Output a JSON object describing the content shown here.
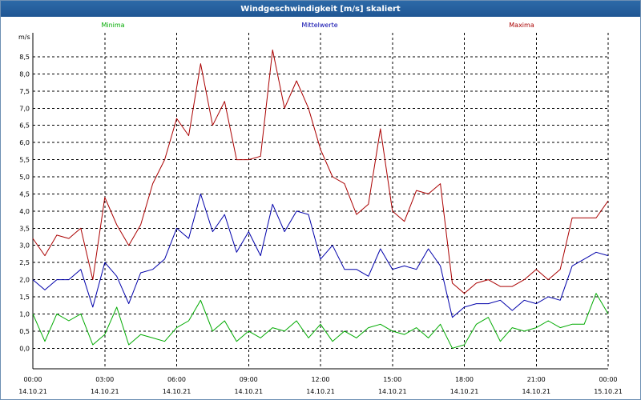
{
  "window": {
    "title": "Windgeschwindigkeit [m/s] skaliert"
  },
  "legend": [
    {
      "label": "Minima",
      "color": "#00aa00"
    },
    {
      "label": "Mittelwerte",
      "color": "#0000aa"
    },
    {
      "label": "Maxima",
      "color": "#aa0000"
    }
  ],
  "chart_data": {
    "type": "line",
    "title": "Windgeschwindigkeit [m/s] skaliert",
    "ylabel": "m/s",
    "xlabel": "",
    "ylim": [
      -0.6,
      9.2
    ],
    "xlim": [
      0,
      24
    ],
    "grid": true,
    "legend_position": "top",
    "yticks": [
      "0,0",
      "0,5",
      "1,0",
      "1,5",
      "2,0",
      "2,5",
      "3,0",
      "3,5",
      "4,0",
      "4,5",
      "5,0",
      "5,5",
      "6,0",
      "6,5",
      "7,0",
      "7,5",
      "8,0",
      "8,5"
    ],
    "xticks": [
      {
        "time": "00:00",
        "date": "14.10.21"
      },
      {
        "time": "03:00",
        "date": "14.10.21"
      },
      {
        "time": "06:00",
        "date": "14.10.21"
      },
      {
        "time": "09:00",
        "date": "14.10.21"
      },
      {
        "time": "12:00",
        "date": "14.10.21"
      },
      {
        "time": "15:00",
        "date": "14.10.21"
      },
      {
        "time": "18:00",
        "date": "14.10.21"
      },
      {
        "time": "21:00",
        "date": "14.10.21"
      },
      {
        "time": "00:00",
        "date": "15.10.21"
      }
    ],
    "x": [
      0,
      0.5,
      1,
      1.5,
      2,
      2.5,
      3,
      3.5,
      4,
      4.5,
      5,
      5.5,
      6,
      6.5,
      7,
      7.5,
      8,
      8.5,
      9,
      9.5,
      10,
      10.5,
      11,
      11.5,
      12,
      12.5,
      13,
      13.5,
      14,
      14.5,
      15,
      15.5,
      16,
      16.5,
      17,
      17.5,
      18,
      18.5,
      19,
      19.5,
      20,
      20.5,
      21,
      21.5,
      22,
      22.5,
      23,
      23.5,
      24
    ],
    "series": [
      {
        "name": "Maxima",
        "color": "#aa0000",
        "values": [
          3.2,
          2.7,
          3.3,
          3.2,
          3.5,
          2.0,
          4.4,
          3.6,
          3.0,
          3.6,
          4.8,
          5.5,
          6.7,
          6.2,
          8.3,
          6.5,
          7.2,
          5.5,
          5.5,
          5.6,
          8.7,
          7.0,
          7.8,
          7.0,
          5.8,
          5.0,
          4.8,
          3.9,
          4.2,
          6.4,
          4.0,
          3.7,
          4.6,
          4.5,
          4.8,
          1.9,
          1.6,
          1.9,
          2.0,
          1.8,
          1.8,
          2.0,
          2.3,
          2.0,
          2.3,
          3.8,
          3.8,
          3.8,
          4.3
        ]
      },
      {
        "name": "Mittelwerte",
        "color": "#0000aa",
        "values": [
          2.0,
          1.7,
          2.0,
          2.0,
          2.3,
          1.2,
          2.5,
          2.1,
          1.3,
          2.2,
          2.3,
          2.6,
          3.5,
          3.2,
          4.5,
          3.4,
          3.9,
          2.8,
          3.4,
          2.7,
          4.2,
          3.4,
          4.0,
          3.9,
          2.6,
          3.0,
          2.3,
          2.3,
          2.1,
          2.9,
          2.3,
          2.4,
          2.3,
          2.9,
          2.4,
          0.9,
          1.2,
          1.3,
          1.3,
          1.4,
          1.1,
          1.4,
          1.3,
          1.5,
          1.4,
          2.4,
          2.6,
          2.8,
          2.7
        ]
      },
      {
        "name": "Minima",
        "color": "#00aa00",
        "values": [
          1.0,
          0.2,
          1.0,
          0.8,
          1.0,
          0.1,
          0.4,
          1.2,
          0.1,
          0.4,
          0.3,
          0.2,
          0.6,
          0.8,
          1.4,
          0.5,
          0.8,
          0.2,
          0.5,
          0.3,
          0.6,
          0.5,
          0.8,
          0.3,
          0.7,
          0.2,
          0.5,
          0.3,
          0.6,
          0.7,
          0.5,
          0.4,
          0.6,
          0.3,
          0.7,
          0.0,
          0.1,
          0.7,
          0.9,
          0.2,
          0.6,
          0.5,
          0.6,
          0.8,
          0.6,
          0.7,
          0.7,
          1.6,
          1.0
        ]
      }
    ]
  }
}
